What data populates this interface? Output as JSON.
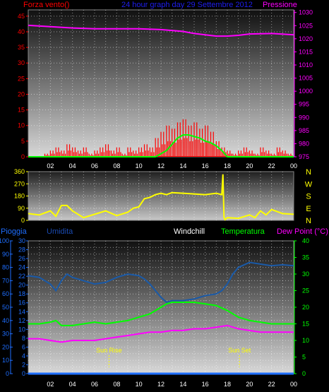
{
  "header": {
    "left_label": "Forza vento()",
    "title": "24 hour graph day  29 Settembre 2012",
    "right_label": "Pressione"
  },
  "chart_data": [
    {
      "type": "line",
      "name": "wind-pressure",
      "x_ticks": [
        "02",
        "04",
        "06",
        "08",
        "10",
        "12",
        "14",
        "16",
        "18",
        "20",
        "22",
        "00"
      ],
      "y_left_ticks": [
        0,
        5,
        10,
        15,
        20,
        25,
        30,
        35,
        40,
        45
      ],
      "y_left_lim": [
        0,
        47
      ],
      "y_right_ticks": [
        975,
        980,
        985,
        990,
        995,
        1000,
        1005,
        1010,
        1015,
        1020,
        1025,
        1030
      ],
      "y_right_lim": [
        975,
        1031
      ],
      "y_right_color": "#ff00ff",
      "series": [
        {
          "name": "Pressione",
          "color": "#ff00ff",
          "axis": "right",
          "x": [
            0,
            2,
            4,
            6,
            8,
            10,
            12,
            14,
            15,
            16,
            17,
            18,
            19,
            20,
            22,
            24
          ],
          "y": [
            1025.1,
            1024.6,
            1024.1,
            1023.8,
            1023.8,
            1023.8,
            1023.5,
            1022.8,
            1022.0,
            1021.5,
            1021.0,
            1021.0,
            1021.3,
            1021.8,
            1022.0,
            1021.5
          ]
        },
        {
          "name": "wind_gust",
          "color": "#ff0000",
          "axis": "left",
          "x": [
            0,
            1,
            1.5,
            2,
            2.5,
            3,
            3.5,
            4,
            4.5,
            5,
            5.5,
            6,
            6.5,
            7,
            7.5,
            8,
            8.5,
            9,
            9.5,
            10,
            10.5,
            11,
            11.5,
            12,
            12.5,
            13,
            13.5,
            14,
            14.5,
            15,
            15.5,
            16,
            16.5,
            17,
            17.5,
            18,
            18.5,
            19,
            19.5,
            20,
            20.5,
            21,
            21.5,
            22,
            22.5,
            23,
            23.5,
            24
          ],
          "y": [
            0,
            0,
            1,
            2,
            3,
            2,
            4,
            3,
            2,
            3,
            1,
            2,
            3,
            4,
            2,
            3,
            1,
            3,
            2,
            3,
            4,
            3,
            6,
            8,
            10,
            9,
            11,
            12,
            10,
            11,
            9,
            10,
            8,
            5,
            3,
            2,
            1,
            2,
            3,
            2,
            1,
            3,
            2,
            1,
            3,
            2,
            1,
            0
          ]
        },
        {
          "name": "wind_avg",
          "color": "#00ff00",
          "axis": "left",
          "x": [
            0,
            11,
            11.5,
            12,
            12.5,
            13,
            13.5,
            14,
            14.5,
            15,
            15.5,
            16,
            16.5,
            17,
            17.5,
            18,
            24
          ],
          "y": [
            0,
            0,
            0,
            1,
            2,
            4,
            6,
            7,
            7,
            6.5,
            6,
            5,
            4.5,
            3.5,
            2,
            0,
            0
          ]
        }
      ]
    },
    {
      "type": "line",
      "name": "wind-direction",
      "x_ticks": [],
      "y_left_ticks": [
        0,
        90,
        180,
        270,
        360
      ],
      "y_lim": [
        0,
        360
      ],
      "y_right_ticks": [
        "N",
        "W",
        "S",
        "E",
        "N"
      ],
      "series": [
        {
          "name": "direction",
          "color": "#ffff00",
          "x": [
            0,
            1,
            2,
            2.5,
            3,
            3.5,
            4,
            5,
            6,
            7,
            8,
            9,
            9.5,
            10,
            10.5,
            11,
            11.5,
            12,
            12.5,
            13,
            14,
            15,
            16,
            17,
            17.5,
            17.6,
            17.7,
            17.8,
            18,
            19,
            20,
            20.5,
            21,
            21.5,
            22,
            23,
            24
          ],
          "y": [
            50,
            40,
            70,
            30,
            110,
            110,
            70,
            20,
            45,
            70,
            35,
            60,
            90,
            100,
            160,
            170,
            190,
            200,
            190,
            205,
            200,
            195,
            190,
            200,
            190,
            340,
            20,
            5,
            20,
            15,
            40,
            20,
            70,
            40,
            80,
            50,
            45
          ]
        }
      ]
    },
    {
      "type": "line",
      "name": "humidity-temperature",
      "header": {
        "pioggia": "Pioggia",
        "umidita": "Umidita",
        "windchill": "Windchill",
        "temperatura": "Temperatura",
        "dewpoint": "Dew Point (°C)"
      },
      "x_ticks": [
        "02",
        "04",
        "06",
        "08",
        "10",
        "12",
        "14",
        "16",
        "18",
        "20",
        "22",
        "00"
      ],
      "y_left_outer_ticks": [
        0,
        10,
        20,
        30,
        40,
        50,
        60,
        70,
        80,
        90,
        100
      ],
      "y_left_outer_color": "#1e6eff",
      "y_left_inner_ticks": [
        0,
        2,
        4,
        6,
        8,
        10,
        12,
        14,
        16,
        18,
        20,
        22,
        24,
        26,
        28,
        30
      ],
      "y_left_inner_color": "#1e6eff",
      "y_right_ticks": [
        0,
        5,
        10,
        15,
        20,
        25,
        30,
        35,
        40
      ],
      "y_right_color": "#00ff00",
      "y_lim": [
        0,
        40
      ],
      "annotations": [
        {
          "label": "Sun Rise",
          "x": 7.3
        },
        {
          "label": "Sun Set",
          "x": 19.1
        }
      ],
      "series": [
        {
          "name": "Umidita",
          "color": "#1a5aa8",
          "x": [
            0,
            1,
            2,
            2.5,
            3,
            3.5,
            4,
            5,
            6,
            7,
            8,
            9,
            10,
            10.5,
            11,
            11.5,
            12,
            12.5,
            13,
            14,
            15,
            16,
            17,
            17.5,
            18,
            18.5,
            19,
            20,
            21,
            22,
            23,
            24
          ],
          "y": [
            29.5,
            29,
            27,
            25,
            28,
            30,
            29,
            28,
            27,
            27.5,
            29,
            30,
            29.5,
            28.5,
            27,
            25,
            23,
            21.5,
            22,
            22,
            22.5,
            23.5,
            24,
            25,
            27,
            30,
            32,
            33.5,
            33,
            32.5,
            32.8,
            32.5
          ],
          "scale": "inner_to_40"
        },
        {
          "name": "Temperatura",
          "color": "#00ff00",
          "x": [
            0,
            1,
            2,
            2.5,
            3,
            4,
            5,
            6,
            7,
            8,
            9,
            10,
            11,
            12,
            12.5,
            13,
            14,
            15,
            16,
            17,
            18,
            19,
            20,
            21,
            22,
            23,
            24
          ],
          "y": [
            15,
            15,
            15.5,
            16,
            14.5,
            14.5,
            15,
            15.5,
            15,
            15.5,
            16,
            17,
            18,
            20,
            21,
            21.5,
            21.5,
            21.5,
            21,
            20.5,
            19,
            17,
            16,
            15.5,
            15,
            15,
            15
          ],
          "scale": "right"
        },
        {
          "name": "Dew Point",
          "color": "#ff00ff",
          "x": [
            0,
            1,
            2,
            3,
            4,
            5,
            6,
            7,
            8,
            9,
            10,
            11,
            12,
            13,
            14,
            15,
            16,
            17,
            18,
            19,
            20,
            21,
            22,
            23,
            24
          ],
          "y": [
            10.5,
            10.5,
            10,
            9.5,
            10,
            10,
            10,
            10.5,
            11,
            11.5,
            12,
            12.5,
            12.5,
            13,
            13,
            13.5,
            13.5,
            14,
            14.5,
            13.5,
            13,
            12.5,
            12.5,
            12.5,
            12.5
          ],
          "scale": "right"
        },
        {
          "name": "Pioggia",
          "color": "#1e6eff",
          "x": [
            0,
            24
          ],
          "y": [
            0,
            0
          ],
          "scale": "right"
        }
      ]
    }
  ]
}
